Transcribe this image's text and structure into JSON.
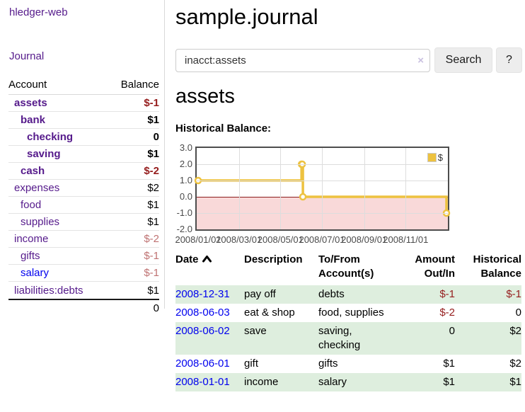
{
  "app": {
    "brand": "hledger-web"
  },
  "sidebar": {
    "nav_journal": "Journal",
    "accounts": {
      "header_account": "Account",
      "header_balance": "Balance",
      "rows": [
        {
          "name": "assets",
          "balance": "$-1"
        },
        {
          "name": "bank",
          "balance": "$1"
        },
        {
          "name": "checking",
          "balance": "0"
        },
        {
          "name": "saving",
          "balance": "$1"
        },
        {
          "name": "cash",
          "balance": "$-2"
        },
        {
          "name": "expenses",
          "balance": "$2"
        },
        {
          "name": "food",
          "balance": "$1"
        },
        {
          "name": "supplies",
          "balance": "$1"
        },
        {
          "name": "income",
          "balance": "$-2"
        },
        {
          "name": "gifts",
          "balance": "$-1"
        },
        {
          "name": "salary",
          "balance": "$-1"
        },
        {
          "name": "liabilities:debts",
          "balance": "$1"
        }
      ],
      "total": "0"
    }
  },
  "header": {
    "title": "sample.journal"
  },
  "search": {
    "value": "inacct:assets",
    "clear_icon": "×",
    "button_label": "Search",
    "help_label": "?"
  },
  "account_page": {
    "heading": "assets",
    "chart_title": "Historical Balance:"
  },
  "chart_data": {
    "type": "line",
    "step": true,
    "series": [
      {
        "name": "$",
        "color": "#edc240",
        "points": [
          [
            "2008-01-01",
            1
          ],
          [
            "2008-06-01",
            2
          ],
          [
            "2008-06-02",
            2
          ],
          [
            "2008-06-03",
            0
          ],
          [
            "2008-12-31",
            -1
          ]
        ]
      }
    ],
    "x_range": [
      "2008-01-01",
      "2008-12-31"
    ],
    "x_ticks": [
      "2008/01/01",
      "2008/03/01",
      "2008/05/01",
      "2008/07/01",
      "2008/09/01",
      "2008/11/01"
    ],
    "y_ticks": [
      3.0,
      2.0,
      1.0,
      0.0,
      -1.0,
      -2.0
    ],
    "ylim": [
      -2,
      3
    ],
    "legend": "$",
    "legend_position": "top-right",
    "grid": true,
    "negative_region_fill": "#f9d9d9",
    "zero_line_color": "#8b1c1c"
  },
  "register": {
    "headers": [
      {
        "line1": "Date",
        "line2": ""
      },
      {
        "line1": "Description",
        "line2": ""
      },
      {
        "line1": "To/From",
        "line2": "Account(s)"
      },
      {
        "line1": "Amount",
        "line2": "Out/In"
      },
      {
        "line1": "Historical",
        "line2": "Balance"
      }
    ],
    "rows": [
      {
        "date": "2008-12-31",
        "description": "pay off",
        "accounts": "debts",
        "accounts_line2": "",
        "amount": "$-1",
        "balance": "$-1"
      },
      {
        "date": "2008-06-03",
        "description": "eat & shop",
        "accounts": "food, supplies",
        "accounts_line2": "",
        "amount": "$-2",
        "balance": "0"
      },
      {
        "date": "2008-06-02",
        "description": "save",
        "accounts": "saving,",
        "accounts_line2": "checking",
        "amount": "0",
        "balance": "$2"
      },
      {
        "date": "2008-06-01",
        "description": "gift",
        "accounts": "gifts",
        "accounts_line2": "",
        "amount": "$1",
        "balance": "$2"
      },
      {
        "date": "2008-01-01",
        "description": "income",
        "accounts": "salary",
        "accounts_line2": "",
        "amount": "$1",
        "balance": "$1"
      }
    ]
  }
}
